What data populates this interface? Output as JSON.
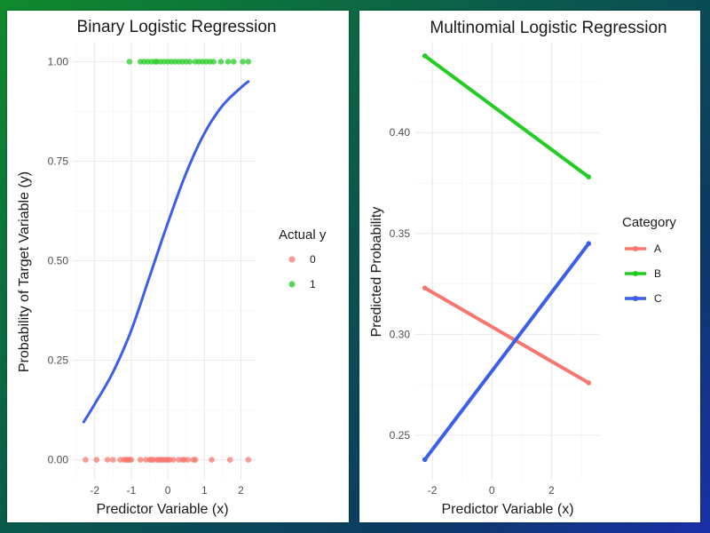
{
  "chart_data": [
    {
      "type": "scatter",
      "title": "Binary Logistic Regression",
      "xlabel": "Predictor Variable (x)",
      "ylabel": "Probability of Target Variable (y)",
      "xlim": [
        -2.6,
        2.4
      ],
      "ylim": [
        -0.05,
        1.05
      ],
      "x_ticks": [
        -2,
        -1,
        0,
        1,
        2
      ],
      "y_ticks": [
        0.0,
        0.25,
        0.5,
        0.75,
        1.0
      ],
      "x_tick_labels": [
        "-2",
        "-1",
        "0",
        "1",
        "2"
      ],
      "y_tick_labels": [
        "0.00",
        "0.25",
        "0.50",
        "0.75",
        "1.00"
      ],
      "grid": true,
      "legend": {
        "title": "Actual y",
        "position": "right",
        "entries": [
          "0",
          "1"
        ]
      },
      "colors": {
        "0": "#f8766d",
        "1": "#22cc22",
        "fit": "#3b5fe6"
      },
      "points_y0_x": [
        -2.25,
        -1.95,
        -1.65,
        -1.5,
        -1.3,
        -1.2,
        -1.15,
        -1.1,
        -1.05,
        -1.0,
        -0.75,
        -0.6,
        -0.5,
        -0.45,
        -0.4,
        -0.3,
        -0.25,
        -0.2,
        -0.15,
        -0.1,
        -0.05,
        0.0,
        0.05,
        0.15,
        0.3,
        0.4,
        0.45,
        0.55,
        0.7,
        0.75,
        1.2,
        1.7,
        2.2
      ],
      "points_y1_x": [
        -1.05,
        -0.75,
        -0.65,
        -0.55,
        -0.45,
        -0.35,
        -0.3,
        -0.2,
        -0.1,
        0.0,
        0.1,
        0.2,
        0.3,
        0.4,
        0.5,
        0.6,
        0.75,
        0.85,
        0.95,
        1.05,
        1.15,
        1.25,
        1.45,
        1.65,
        1.8,
        2.05,
        2.2
      ],
      "fit_x": [
        -2.3,
        -2.0,
        -1.5,
        -1.0,
        -0.5,
        0.0,
        0.5,
        1.0,
        1.5,
        2.0,
        2.2
      ],
      "fit_y": [
        0.095,
        0.14,
        0.22,
        0.325,
        0.46,
        0.595,
        0.72,
        0.82,
        0.89,
        0.935,
        0.95
      ]
    },
    {
      "type": "line",
      "title": "Multinomial Logistic Regression",
      "xlabel": "Predictor Variable (x)",
      "ylabel": "Predicted Probability",
      "xlim": [
        -2.6,
        3.6
      ],
      "ylim": [
        0.228,
        0.445
      ],
      "x_ticks": [
        -2,
        0,
        2
      ],
      "y_ticks": [
        0.25,
        0.3,
        0.35,
        0.4
      ],
      "x_tick_labels": [
        "-2",
        "0",
        "2"
      ],
      "y_tick_labels": [
        "0.25",
        "0.30",
        "0.35",
        "0.40"
      ],
      "grid": true,
      "legend": {
        "title": "Category",
        "position": "right"
      },
      "series": [
        {
          "name": "A",
          "color": "#f8766d",
          "x": [
            -2.25,
            3.25
          ],
          "values": [
            0.323,
            0.276
          ]
        },
        {
          "name": "B",
          "color": "#22cc22",
          "x": [
            -2.25,
            3.25
          ],
          "values": [
            0.438,
            0.378
          ]
        },
        {
          "name": "C",
          "color": "#3b5fe6",
          "x": [
            -2.25,
            3.25
          ],
          "values": [
            0.238,
            0.345
          ]
        }
      ]
    }
  ]
}
